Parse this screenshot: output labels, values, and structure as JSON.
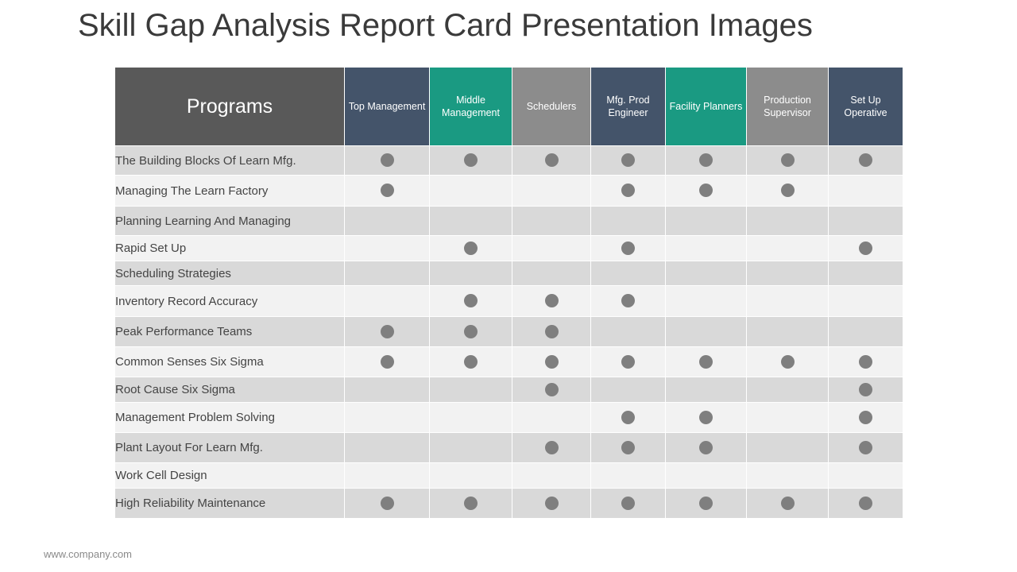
{
  "title": "Skill Gap Analysis Report Card Presentation Images",
  "footer": "www.company.com",
  "table": {
    "corner_label": "Programs",
    "columns": [
      {
        "label": "Top Management",
        "color": "#44546a"
      },
      {
        "label": "Middle Management",
        "color": "#1a9a82"
      },
      {
        "label": "Schedulers",
        "color": "#8c8c8c"
      },
      {
        "label": "Mfg. Prod Engineer",
        "color": "#44546a"
      },
      {
        "label": "Facility Planners",
        "color": "#1a9a82"
      },
      {
        "label": "Production Supervisor",
        "color": "#8c8c8c"
      },
      {
        "label": "Set Up Operative",
        "color": "#44546a"
      }
    ],
    "rows": [
      {
        "name": "The Building Blocks Of Learn Mfg.",
        "marks": [
          1,
          1,
          1,
          1,
          1,
          1,
          1
        ]
      },
      {
        "name": "Managing The Learn Factory",
        "marks": [
          1,
          0,
          0,
          1,
          1,
          1,
          0
        ]
      },
      {
        "name": "Planning Learning And Managing",
        "marks": [
          0,
          0,
          0,
          0,
          0,
          0,
          0
        ]
      },
      {
        "name": "Rapid Set Up",
        "marks": [
          0,
          1,
          0,
          1,
          0,
          0,
          1
        ]
      },
      {
        "name": "Scheduling Strategies",
        "marks": [
          0,
          0,
          0,
          0,
          0,
          0,
          0
        ]
      },
      {
        "name": "Inventory  Record Accuracy",
        "marks": [
          0,
          1,
          1,
          1,
          0,
          0,
          0
        ]
      },
      {
        "name": "Peak Performance Teams",
        "marks": [
          1,
          1,
          1,
          0,
          0,
          0,
          0
        ]
      },
      {
        "name": "Common Senses Six Sigma",
        "marks": [
          1,
          1,
          1,
          1,
          1,
          1,
          1
        ]
      },
      {
        "name": "Root Cause Six Sigma",
        "marks": [
          0,
          0,
          1,
          0,
          0,
          0,
          1
        ]
      },
      {
        "name": "Management Problem Solving",
        "marks": [
          0,
          0,
          0,
          1,
          1,
          0,
          1
        ]
      },
      {
        "name": "Plant Layout For Learn Mfg.",
        "marks": [
          0,
          0,
          1,
          1,
          1,
          0,
          1
        ]
      },
      {
        "name": "Work Cell Design",
        "marks": [
          0,
          0,
          0,
          0,
          0,
          0,
          0
        ]
      },
      {
        "name": "High Reliability Maintenance",
        "marks": [
          1,
          1,
          1,
          1,
          1,
          1,
          1
        ]
      }
    ]
  },
  "dot_color": "#7f7f7f"
}
